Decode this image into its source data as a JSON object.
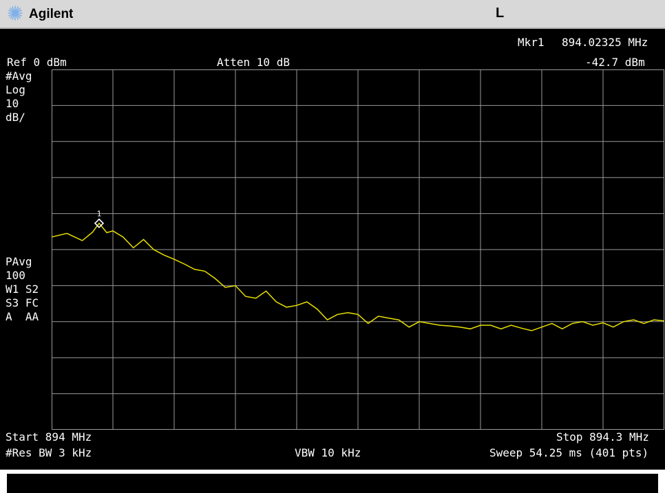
{
  "header": {
    "brand": "Agilent",
    "indicator": "L",
    "brand_icon": "agilent-spark-icon",
    "colors": {
      "titlebar": "#d8d8d8",
      "brand_icon": "#7fb0e8"
    }
  },
  "marker": {
    "label": "Mkr1",
    "frequency": "894.02325 MHz",
    "level": "-42.7 dBm",
    "number": "1",
    "marker_icon": "marker-diamond-icon"
  },
  "settings": {
    "ref_level": "Ref 0 dBm",
    "atten": "Atten 10 dB",
    "avg_flag": "#Avg",
    "scale_type": "Log",
    "scale_value": "10",
    "scale_unit": "dB/",
    "pavg": "PAvg",
    "pavg_count": "100",
    "w1s2": "W1 S2",
    "s3fc": "S3 FC",
    "a_aa": "A  AA"
  },
  "footer": {
    "start": "Start 894 MHz",
    "stop": "Stop 894.3 MHz",
    "res_bw": "#Res BW 3 kHz",
    "vbw": "VBW 10 kHz",
    "sweep": "Sweep 54.25 ms (401 pts)"
  },
  "chart_data": {
    "type": "line",
    "xlim": [
      894.0,
      894.3
    ],
    "ylim": [
      -100,
      0
    ],
    "x_unit": "MHz",
    "y_unit": "dBm",
    "grid": true,
    "grid_divisions": {
      "x": 10,
      "y": 10
    },
    "colors": {
      "trace": "#e8e000",
      "grid": "#9a9a9a",
      "marker": "#ffffff"
    },
    "marker_point": {
      "x": 894.02325,
      "y": -42.7
    },
    "series": [
      {
        "x": [
          894.0,
          894.0075,
          894.015,
          894.02,
          894.02325,
          894.027,
          894.03,
          894.035,
          894.04,
          894.045,
          894.05,
          894.055,
          894.06,
          894.065,
          894.07,
          894.075,
          894.08,
          894.085,
          894.09,
          894.095,
          894.1,
          894.105,
          894.11,
          894.115,
          894.12,
          894.125,
          894.13,
          894.135,
          894.14,
          894.145,
          894.15,
          894.155,
          894.16,
          894.165,
          894.17,
          894.175,
          894.18,
          894.185,
          894.19,
          894.195,
          894.2,
          894.205,
          894.21,
          894.215,
          894.22,
          894.225,
          894.23,
          894.235,
          894.24,
          894.245,
          894.25,
          894.255,
          894.26,
          894.265,
          894.27,
          894.275,
          894.28,
          894.285,
          894.29,
          894.295,
          894.3
        ],
        "y": [
          -46.5,
          -45.5,
          -47.5,
          -45.2,
          -42.7,
          -45.3,
          -44.8,
          -46.5,
          -49.5,
          -47.2,
          -50.0,
          -51.5,
          -52.7,
          -54.0,
          -55.5,
          -56.0,
          -58.0,
          -60.5,
          -60.0,
          -63.0,
          -63.5,
          -61.5,
          -64.5,
          -66.0,
          -65.5,
          -64.5,
          -66.5,
          -69.5,
          -68.0,
          -67.5,
          -68.0,
          -70.5,
          -68.5,
          -69.0,
          -69.5,
          -71.5,
          -70.0,
          -70.5,
          -71.0,
          -71.2,
          -71.5,
          -72.0,
          -71.0,
          -71.0,
          -72.0,
          -71.0,
          -71.8,
          -72.5,
          -71.5,
          -70.5,
          -72.0,
          -70.5,
          -70.0,
          -71.0,
          -70.3,
          -71.5,
          -70.0,
          -69.5,
          -70.5,
          -69.5,
          -69.8
        ]
      }
    ]
  }
}
